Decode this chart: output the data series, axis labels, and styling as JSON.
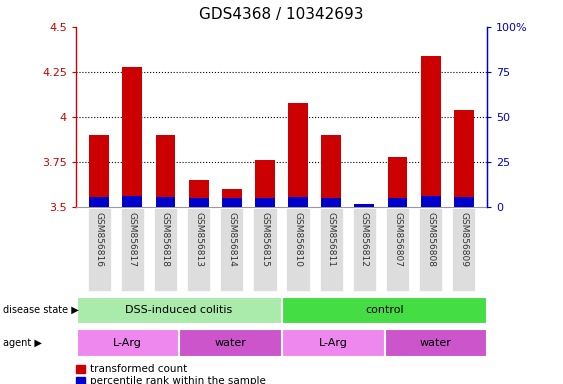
{
  "title": "GDS4368 / 10342693",
  "samples": [
    "GSM856816",
    "GSM856817",
    "GSM856818",
    "GSM856813",
    "GSM856814",
    "GSM856815",
    "GSM856810",
    "GSM856811",
    "GSM856812",
    "GSM856807",
    "GSM856808",
    "GSM856809"
  ],
  "transformed_count": [
    3.9,
    4.28,
    3.9,
    3.65,
    3.6,
    3.76,
    4.08,
    3.9,
    3.52,
    3.78,
    4.34,
    4.04
  ],
  "percentile_rank_left_axis": [
    0.055,
    0.065,
    0.055,
    0.05,
    0.05,
    0.05,
    0.055,
    0.05,
    0.018,
    0.05,
    0.065,
    0.055
  ],
  "ylim_left": [
    3.5,
    4.5
  ],
  "ylim_right": [
    0,
    100
  ],
  "yticks_left": [
    3.5,
    3.75,
    4.0,
    4.25,
    4.5
  ],
  "yticks_right": [
    0,
    25,
    50,
    75,
    100
  ],
  "ytick_labels_left": [
    "3.5",
    "3.75",
    "4",
    "4.25",
    "4.5"
  ],
  "ytick_labels_right": [
    "0",
    "25",
    "50",
    "75",
    "100%"
  ],
  "dotted_lines": [
    3.75,
    4.0,
    4.25
  ],
  "bar_bottom": 3.5,
  "bar_width": 0.6,
  "bar_color_red": "#cc0000",
  "bar_color_blue": "#0000cc",
  "disease_state_groups": [
    {
      "label": "DSS-induced colitis",
      "start": 0,
      "end": 5,
      "color": "#aaeaaa"
    },
    {
      "label": "control",
      "start": 6,
      "end": 11,
      "color": "#44dd44"
    }
  ],
  "agent_groups": [
    {
      "label": "L-Arg",
      "start": 0,
      "end": 2,
      "color": "#ee88ee"
    },
    {
      "label": "water",
      "start": 3,
      "end": 5,
      "color": "#cc55cc"
    },
    {
      "label": "L-Arg",
      "start": 6,
      "end": 8,
      "color": "#ee88ee"
    },
    {
      "label": "water",
      "start": 9,
      "end": 11,
      "color": "#cc55cc"
    }
  ],
  "legend_red_label": "transformed count",
  "legend_blue_label": "percentile rank within the sample",
  "left_axis_color": "#cc0000",
  "right_axis_color": "#0000cc",
  "sample_box_color": "#dddddd"
}
